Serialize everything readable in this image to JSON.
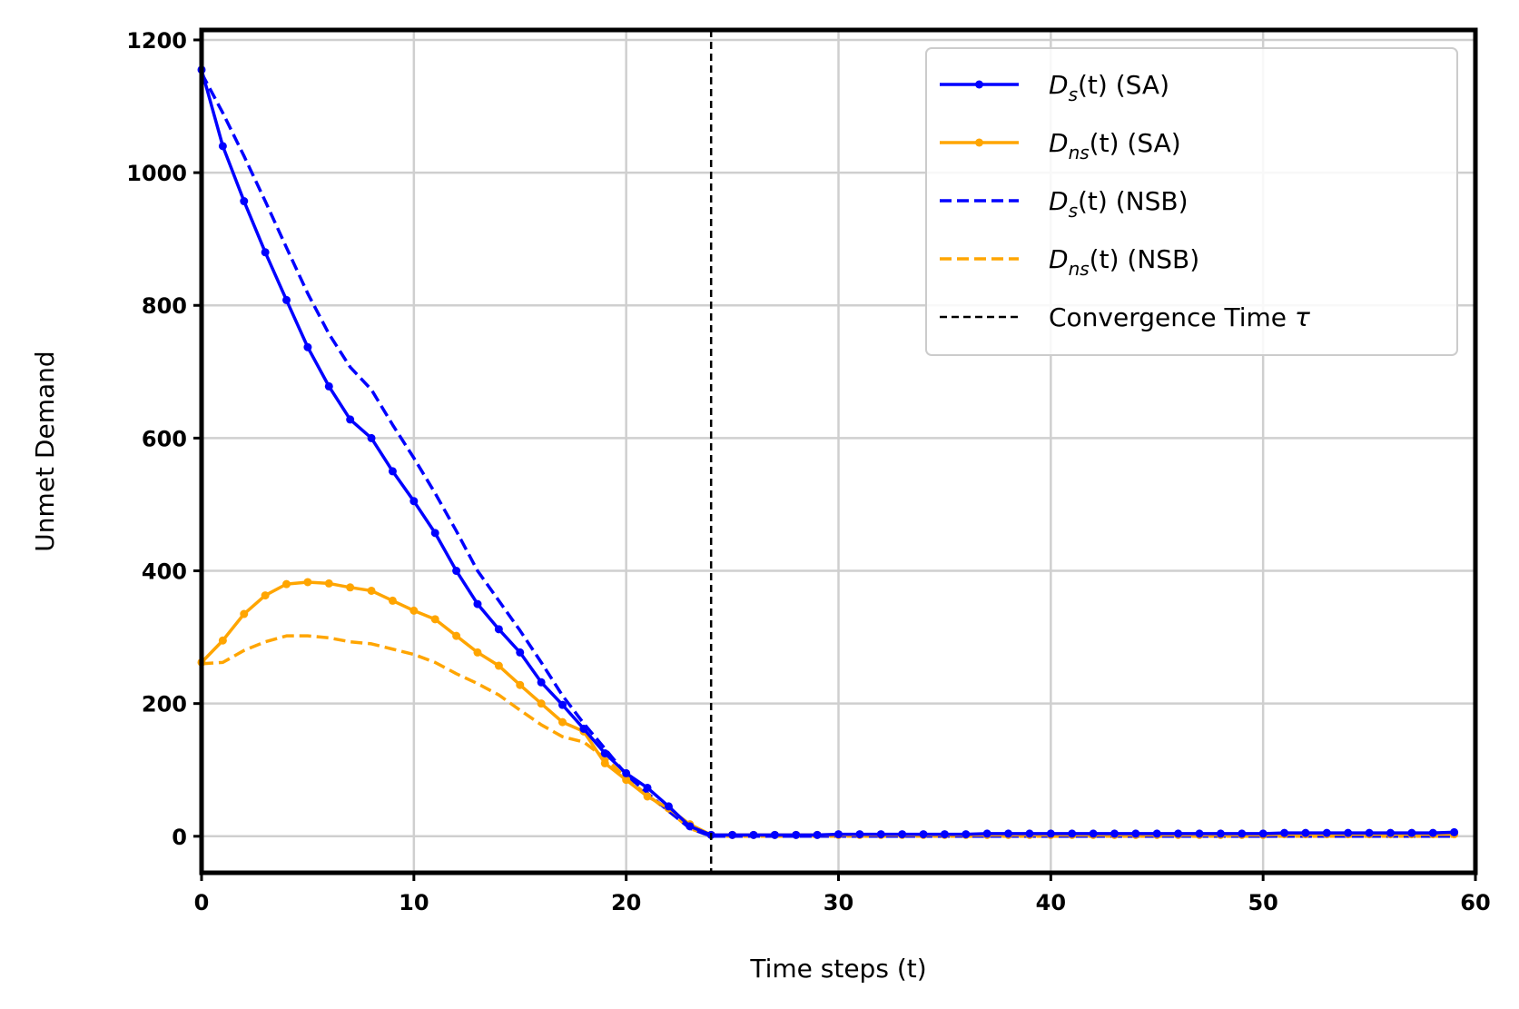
{
  "chart_data": {
    "type": "line",
    "title": "",
    "xlabel": "Time steps (t)",
    "ylabel": "Unmet Demand",
    "xlim": [
      0,
      60
    ],
    "ylim": [
      -55,
      1215
    ],
    "xticks": [
      0,
      10,
      20,
      30,
      40,
      50,
      60
    ],
    "yticks": [
      0,
      200,
      400,
      600,
      800,
      1000,
      1200
    ],
    "grid": true,
    "legend_position": "top-right",
    "series": [
      {
        "id": "ds_sa",
        "legend_main": "D",
        "legend_sub": "s",
        "legend_arg": "(t)",
        "legend_tag": " (SA)",
        "color": "#0000ff",
        "style": "solid",
        "markers": true,
        "values": [
          1155,
          1040,
          957,
          880,
          808,
          737,
          678,
          628,
          600,
          550,
          505,
          457,
          400,
          350,
          312,
          277,
          232,
          198,
          162,
          125,
          95,
          73,
          45,
          15,
          2,
          2,
          2,
          2,
          2,
          2,
          3,
          3,
          3,
          3,
          3,
          3,
          3,
          4,
          4,
          4,
          4,
          4,
          4,
          4,
          4,
          4,
          4,
          4,
          4,
          4,
          4,
          5,
          5,
          5,
          5,
          5,
          5,
          5,
          5,
          6
        ]
      },
      {
        "id": "dns_sa",
        "legend_main": "D",
        "legend_sub": "ns",
        "legend_arg": "(t)",
        "legend_tag": " (SA)",
        "color": "#ffa500",
        "style": "solid",
        "markers": true,
        "values": [
          262,
          295,
          335,
          363,
          380,
          383,
          381,
          375,
          370,
          355,
          340,
          327,
          302,
          277,
          257,
          228,
          200,
          172,
          158,
          110,
          85,
          60,
          42,
          18,
          2,
          2,
          2,
          2,
          2,
          2,
          2,
          2,
          2,
          2,
          2,
          2,
          2,
          2,
          2,
          2,
          2,
          2,
          2,
          2,
          2,
          2,
          2,
          2,
          2,
          2,
          2,
          3,
          3,
          3,
          3,
          3,
          3,
          3,
          3,
          3
        ]
      },
      {
        "id": "ds_nsb",
        "legend_main": "D",
        "legend_sub": "s",
        "legend_arg": "(t)",
        "legend_tag": " (NSB)",
        "color": "#0000ff",
        "style": "dashed",
        "markers": false,
        "values": [
          1150,
          1090,
          1025,
          957,
          887,
          818,
          757,
          707,
          673,
          620,
          570,
          517,
          460,
          400,
          355,
          310,
          262,
          212,
          170,
          132,
          93,
          65,
          38,
          12,
          0,
          0,
          0,
          0,
          0,
          0,
          0,
          0,
          0,
          0,
          0,
          0,
          0,
          0,
          0,
          0,
          0,
          0,
          0,
          0,
          0,
          0,
          0,
          0,
          0,
          0,
          0,
          0,
          0,
          0,
          0,
          0,
          0,
          0,
          0,
          0
        ]
      },
      {
        "id": "dns_nsb",
        "legend_main": "D",
        "legend_sub": "ns",
        "legend_arg": "(t)",
        "legend_tag": " (NSB)",
        "color": "#ffa500",
        "style": "dashed",
        "markers": false,
        "values": [
          260,
          262,
          280,
          293,
          302,
          302,
          299,
          293,
          290,
          282,
          274,
          262,
          245,
          230,
          213,
          190,
          168,
          150,
          142,
          118,
          88,
          62,
          38,
          12,
          0,
          0,
          0,
          0,
          0,
          0,
          0,
          0,
          0,
          0,
          0,
          0,
          0,
          0,
          0,
          0,
          0,
          0,
          0,
          0,
          0,
          0,
          0,
          0,
          0,
          0,
          0,
          0,
          0,
          0,
          0,
          0,
          0,
          0,
          0,
          0
        ]
      }
    ],
    "vline": {
      "x": 24,
      "color": "#000000",
      "style": "dashed",
      "legend_text": "Convergence Time ",
      "legend_symbol": "τ"
    }
  }
}
